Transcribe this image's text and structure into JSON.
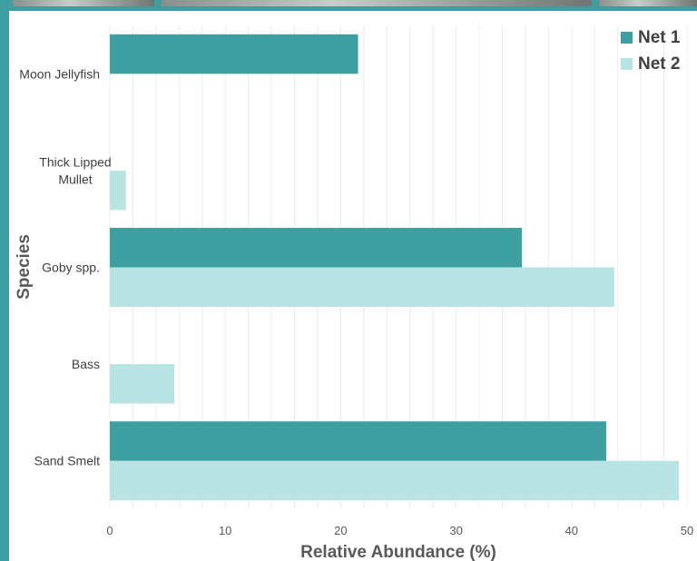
{
  "colors": {
    "frame": "#3d9fa2",
    "net1": "#3e9fa1",
    "net2": "#b8e4e3"
  },
  "chart_data": {
    "type": "bar",
    "orientation": "horizontal",
    "title": "",
    "xlabel": "Relative Abundance (%)",
    "ylabel": "Species",
    "xlim": [
      0,
      50
    ],
    "xticks": [
      0,
      10,
      20,
      30,
      40,
      50
    ],
    "grid": true,
    "legend_position": "top-right",
    "categories": [
      "Moon Jellyfish",
      "Thick Lipped\nMullet",
      "Goby spp.",
      "Bass",
      "Sand Smelt"
    ],
    "series": [
      {
        "name": "Net 1",
        "color": "#3e9fa1",
        "values": [
          21.5,
          0,
          35.7,
          0,
          43.0
        ]
      },
      {
        "name": "Net 2",
        "color": "#b8e4e3",
        "values": [
          0,
          1.4,
          43.7,
          5.6,
          49.3
        ]
      }
    ]
  }
}
